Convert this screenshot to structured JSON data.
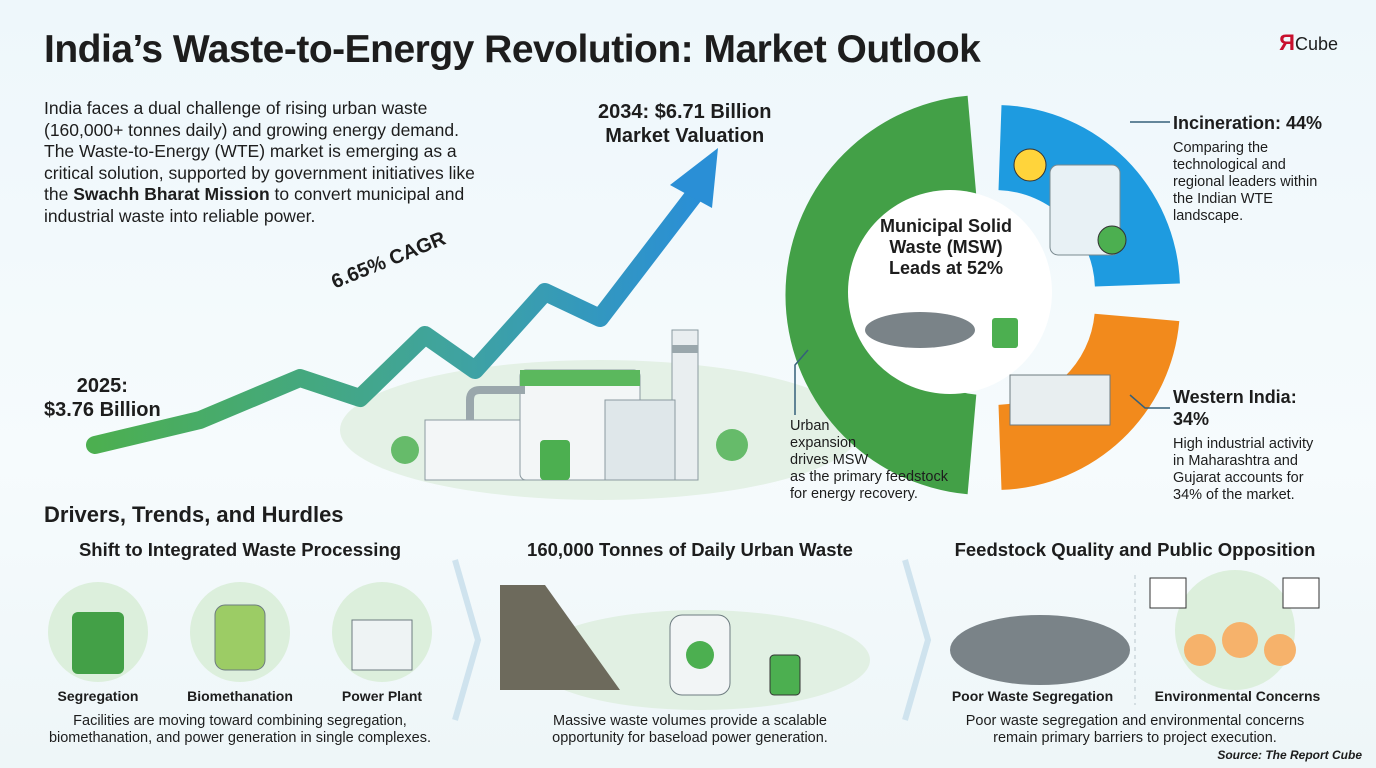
{
  "header": {
    "title": "India’s Waste-to-Energy Revolution: Market Outlook",
    "logo_mark": "Я",
    "logo_text": "Cube"
  },
  "intro": {
    "lines": [
      "India faces a dual challenge of rising urban waste",
      "(160,000+ tonnes daily) and growing energy demand.",
      "The Waste-to-Energy (WTE) market is emerging as a",
      "critical solution, supported by government initiatives like"
    ],
    "last_before": "the ",
    "last_bold": "Swachh Bharat Mission",
    "last_after": " to convert municipal and",
    "final": "industrial waste into reliable power."
  },
  "growth": {
    "end": [
      "2034: $6.71 Billion",
      "Market Valuation"
    ],
    "cagr": "6.65% CAGR",
    "start": [
      "2025:",
      "$3.76 Billion"
    ]
  },
  "segments": {
    "center": [
      "Municipal Solid",
      "Waste (MSW)",
      "Leads at 52%"
    ],
    "incineration": {
      "title": "Incineration: 44%",
      "lines": [
        "Comparing the",
        "technological and",
        "regional leaders within",
        "the Indian WTE",
        "landscape."
      ]
    },
    "western": {
      "title": [
        "Western India:",
        "34%"
      ],
      "lines": [
        "High industrial activity",
        "in Maharashtra and",
        "Gujarat accounts for",
        "34% of the market."
      ]
    },
    "urban": [
      "Urban",
      "expansion",
      "drives MSW",
      "as the primary feedstock",
      "for energy recovery."
    ]
  },
  "drivers": {
    "title": "Drivers, Trends, and Hurdles",
    "panels": [
      {
        "title": "Shift to Integrated Waste Processing",
        "items": [
          "Segregation",
          "Biomethanation",
          "Power Plant"
        ],
        "caption": [
          "Facilities are moving toward combining segregation,",
          "biomethanation, and power generation in single complexes."
        ]
      },
      {
        "title": "160,000 Tonnes of Daily Urban Waste",
        "items": [],
        "caption": [
          "Massive waste volumes provide a scalable",
          "opportunity for baseload power generation."
        ]
      },
      {
        "title": "Feedstock Quality and Public Opposition",
        "items": [
          "Poor Waste Segregation",
          "Environmental Concerns"
        ],
        "caption": [
          "Poor waste segregation and environmental concerns",
          "remain primary barriers to project execution."
        ]
      }
    ]
  },
  "source": "Source: The Report Cube"
}
